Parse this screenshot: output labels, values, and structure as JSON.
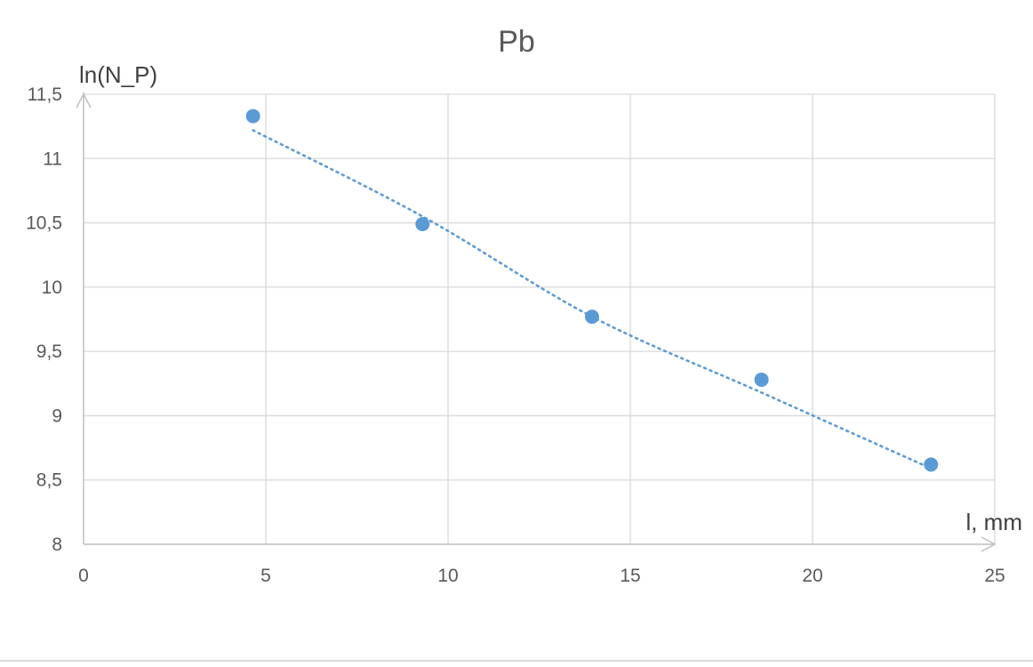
{
  "chart_data": {
    "type": "scatter",
    "title": "Pb",
    "xlabel": "l, mm",
    "ylabel": "ln(N_P)",
    "xlim": [
      0,
      25
    ],
    "ylim": [
      8,
      11.5
    ],
    "x_ticks": [
      "0",
      "5",
      "10",
      "15",
      "20",
      "25"
    ],
    "y_ticks": [
      "8",
      "8,5",
      "9",
      "9,5",
      "10",
      "10,5",
      "11",
      "11,5"
    ],
    "x_tick_values": [
      0,
      5,
      10,
      15,
      20,
      25
    ],
    "y_tick_values": [
      8,
      8.5,
      9,
      9.5,
      10,
      10.5,
      11,
      11.5
    ],
    "grid": true,
    "legend": "none",
    "series": [
      {
        "x": [
          4.65,
          9.3,
          13.95,
          18.6,
          23.25
        ],
        "y": [
          11.33,
          10.49,
          9.77,
          9.28,
          8.62
        ],
        "color": "#5b9bd5",
        "marker": "circle"
      }
    ],
    "trendline": {
      "type": "polynomial",
      "style": "dotted",
      "color": "#5b9bd5",
      "x": [
        4.65,
        9.3,
        13.95,
        18.6,
        23.25
      ],
      "y": [
        11.22,
        10.55,
        9.77,
        9.18,
        8.59
      ]
    }
  }
}
